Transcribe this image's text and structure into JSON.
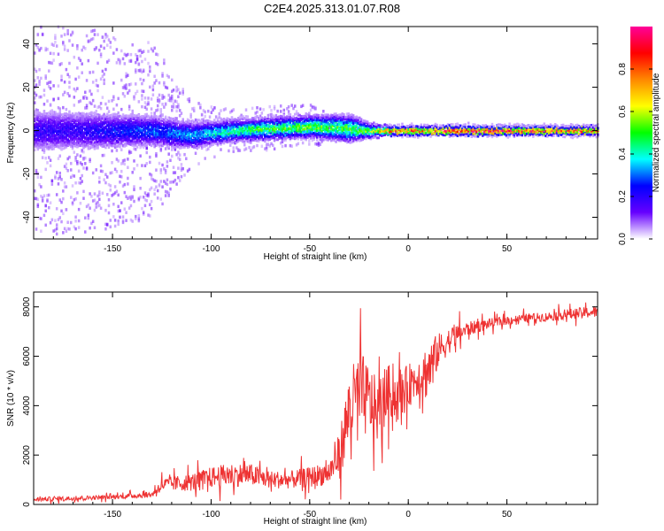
{
  "title": "C2E4.2025.313.01.07.R08",
  "colors": {
    "snr_line": "#ee3333",
    "axes": "#000000"
  },
  "chart_data": [
    {
      "type": "heatmap",
      "title": "C2E4.2025.313.01.07.R08",
      "xlabel": "Height of straight line (km)",
      "ylabel": "Frequency (Hz)",
      "xlim": [
        -190,
        96
      ],
      "ylim": [
        -50,
        48
      ],
      "xticks": [
        -150,
        -100,
        -50,
        0,
        50
      ],
      "xtick_labels": [
        "-150",
        "-100",
        "-50",
        "0",
        "50"
      ],
      "yticks": [
        -40,
        -20,
        0,
        20,
        40
      ],
      "ytick_labels": [
        "-40",
        "-20",
        "0",
        "20",
        "40"
      ],
      "colorbar": {
        "label": "Normalized spectral amplitude",
        "range": [
          0,
          1
        ],
        "ticks": [
          0.0,
          0.2,
          0.4,
          0.6,
          0.8
        ],
        "tick_labels": [
          "0.0",
          "0.2",
          "0.4",
          "0.6",
          "0.8"
        ],
        "colormap": [
          "#ffffff",
          "#6600ff",
          "#0000ff",
          "#00ffff",
          "#00ff00",
          "#ffff00",
          "#ff8800",
          "#ff0000",
          "#ff0099"
        ]
      },
      "ridge": {
        "x": [
          -190,
          -170,
          -150,
          -130,
          -110,
          -90,
          -70,
          -50,
          -30,
          -20,
          -10,
          0,
          10,
          30,
          50,
          70,
          96
        ],
        "center_hz": [
          0,
          0,
          0,
          0,
          -2,
          0,
          1,
          2,
          1,
          0,
          0,
          0,
          0,
          0,
          0,
          0,
          0
        ],
        "amplitude": [
          0.2,
          0.2,
          0.25,
          0.3,
          0.35,
          0.45,
          0.5,
          0.55,
          0.5,
          0.55,
          0.85,
          0.85,
          0.8,
          0.9,
          0.9,
          0.85,
          0.85
        ],
        "width_hz": [
          10,
          9,
          8,
          7,
          6,
          5,
          5,
          5,
          6,
          3,
          2,
          2,
          2,
          2,
          2,
          2,
          2
        ],
        "scatter_extent_hz": [
          48,
          48,
          45,
          40,
          15,
          10,
          10,
          10,
          5,
          3,
          2,
          2,
          2,
          2,
          2,
          2,
          2
        ]
      }
    },
    {
      "type": "line",
      "xlabel": "Height of straight line (km)",
      "ylabel": "SNR (10 * v/v)",
      "xlim": [
        -190,
        96
      ],
      "ylim": [
        0,
        8600
      ],
      "xticks": [
        -150,
        -100,
        -50,
        0,
        50
      ],
      "xtick_labels": [
        "-150",
        "-100",
        "-50",
        "0",
        "50"
      ],
      "yticks": [
        0,
        2000,
        4000,
        6000,
        8000
      ],
      "ytick_labels": [
        "0",
        "2000",
        "4000",
        "6000",
        "8000"
      ],
      "series": [
        {
          "name": "SNR",
          "x": [
            -190,
            -170,
            -150,
            -130,
            -125,
            -110,
            -100,
            -90,
            -80,
            -70,
            -60,
            -50,
            -40,
            -35,
            -30,
            -25,
            -20,
            -15,
            -10,
            -5,
            0,
            5,
            10,
            15,
            20,
            25,
            30,
            40,
            50,
            60,
            70,
            80,
            96
          ],
          "values": [
            200,
            250,
            300,
            400,
            800,
            900,
            1100,
            1200,
            1200,
            1000,
            1000,
            1100,
            1300,
            2000,
            3800,
            4500,
            4200,
            3700,
            4600,
            4300,
            4800,
            5200,
            5400,
            6200,
            6600,
            6900,
            7100,
            7300,
            7450,
            7550,
            7600,
            7700,
            7800
          ],
          "noise": [
            150,
            150,
            150,
            200,
            450,
            600,
            700,
            800,
            750,
            600,
            600,
            700,
            800,
            1500,
            2500,
            3000,
            2500,
            2000,
            1800,
            1600,
            1500,
            1300,
            2000,
            1200,
            900,
            700,
            500,
            350,
            300,
            300,
            300,
            350,
            400
          ]
        }
      ]
    }
  ]
}
